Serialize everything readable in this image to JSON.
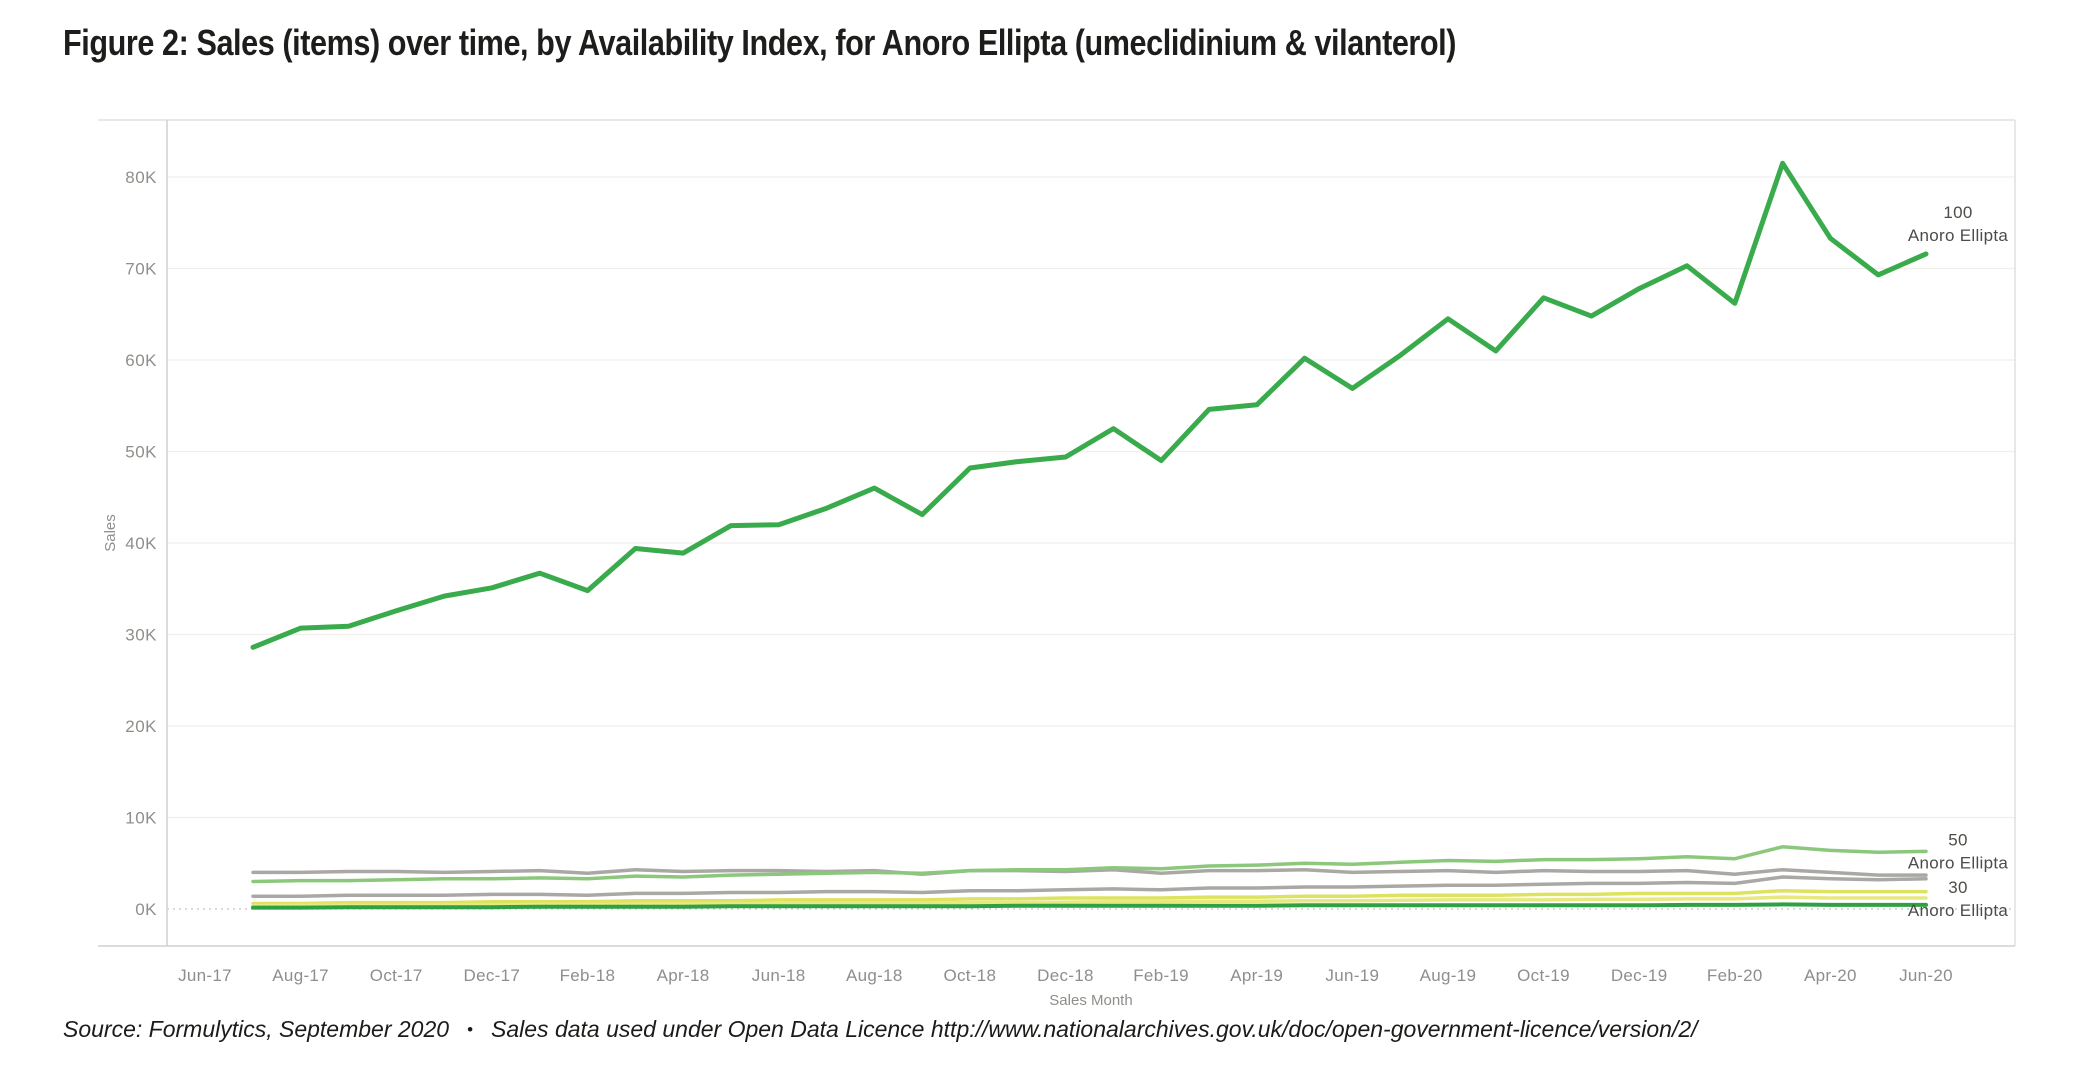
{
  "title": "Figure 2: Sales (items) over time, by Availability Index, for Anoro Ellipta (umeclidinium & vilanterol)",
  "source_line": {
    "part1": "Source: Formulytics, September 2020",
    "bullet": "•",
    "part2": "Sales data used under Open Data Licence http://www.nationalarchives.gov.uk/doc/open-government-licence/version/2/"
  },
  "colors": {
    "background": "#ffffff",
    "title_text": "#1d1d1b",
    "source_text": "#1b1b19",
    "tick_text": "#8f8e8a",
    "axis_title_text": "#8f8e8a",
    "end_label_text": "#4c4c48",
    "grid": "#f1efec",
    "zero_line": "#cfccc7",
    "axis_line": "#d3d1cc",
    "frame": "#e3e1dd",
    "green_100": "#3aab4c",
    "green_50": "#8bc87c",
    "green_30": "#2fa044",
    "gray_series": "#a9a8a4",
    "yellow_series_1": "#dde35e",
    "yellow_series_2": "#e7e980"
  },
  "chart_data": {
    "type": "line",
    "title": "",
    "xlabel": "Sales Month",
    "ylabel": "Sales",
    "grid": "horizontal faint lines every 10K, zero line dotted",
    "legend_position": "labels at right end of lines",
    "ylim": [
      0,
      86
    ],
    "y_tick_labels": [
      "0K",
      "10K",
      "20K",
      "30K",
      "40K",
      "50K",
      "60K",
      "70K",
      "80K"
    ],
    "x_tick_labels": [
      "Jun-17",
      "Aug-17",
      "Oct-17",
      "Dec-17",
      "Feb-18",
      "Apr-18",
      "Jun-18",
      "Aug-18",
      "Oct-18",
      "Dec-18",
      "Feb-19",
      "Apr-19",
      "Jun-19",
      "Aug-19",
      "Oct-19",
      "Dec-19",
      "Feb-20",
      "Apr-20",
      "Jun-20"
    ],
    "x": [
      "Jul-17",
      "Aug-17",
      "Sep-17",
      "Oct-17",
      "Nov-17",
      "Dec-17",
      "Jan-18",
      "Feb-18",
      "Mar-18",
      "Apr-18",
      "May-18",
      "Jun-18",
      "Jul-18",
      "Aug-18",
      "Sep-18",
      "Oct-18",
      "Nov-18",
      "Dec-18",
      "Jan-19",
      "Feb-19",
      "Mar-19",
      "Apr-19",
      "May-19",
      "Jun-19",
      "Jul-19",
      "Aug-19",
      "Sep-19",
      "Oct-19",
      "Nov-19",
      "Dec-19",
      "Jan-20",
      "Feb-20",
      "Mar-20",
      "Apr-20",
      "May-20",
      "Jun-20"
    ],
    "unit": "thousands of items (K)",
    "series": [
      {
        "name": "unlabeled-gray-1",
        "color": "#a9a8a4",
        "stroke_width": 3.5,
        "values": [
          4.0,
          4.0,
          4.1,
          4.1,
          4.0,
          4.1,
          4.2,
          3.9,
          4.3,
          4.1,
          4.2,
          4.2,
          4.1,
          4.2,
          3.8,
          4.2,
          4.2,
          4.1,
          4.3,
          3.9,
          4.2,
          4.2,
          4.3,
          4.0,
          4.1,
          4.2,
          4.0,
          4.2,
          4.1,
          4.1,
          4.2,
          3.8,
          4.3,
          4.0,
          3.7,
          3.7
        ]
      },
      {
        "name": "unlabeled-gray-2",
        "color": "#a9a8a4",
        "stroke_width": 3.5,
        "values": [
          1.4,
          1.4,
          1.5,
          1.5,
          1.5,
          1.6,
          1.6,
          1.5,
          1.7,
          1.7,
          1.8,
          1.8,
          1.9,
          1.9,
          1.8,
          2.0,
          2.0,
          2.1,
          2.2,
          2.1,
          2.3,
          2.3,
          2.4,
          2.4,
          2.5,
          2.6,
          2.6,
          2.7,
          2.8,
          2.8,
          2.9,
          2.8,
          3.5,
          3.3,
          3.2,
          3.3
        ]
      },
      {
        "name": "unlabeled-yellow-1",
        "color": "#dde35e",
        "stroke_width": 3.5,
        "values": [
          0.6,
          0.6,
          0.7,
          0.7,
          0.7,
          0.8,
          0.8,
          0.8,
          0.9,
          0.9,
          0.9,
          1.0,
          1.0,
          1.0,
          1.0,
          1.1,
          1.1,
          1.2,
          1.2,
          1.2,
          1.3,
          1.3,
          1.4,
          1.4,
          1.5,
          1.5,
          1.5,
          1.6,
          1.6,
          1.7,
          1.7,
          1.7,
          2.0,
          1.9,
          1.9,
          1.9
        ]
      },
      {
        "name": "unlabeled-yellow-2",
        "color": "#e7e980",
        "stroke_width": 3.5,
        "values": [
          0.35,
          0.4,
          0.4,
          0.4,
          0.45,
          0.45,
          0.5,
          0.5,
          0.55,
          0.55,
          0.6,
          0.6,
          0.65,
          0.65,
          0.65,
          0.7,
          0.7,
          0.75,
          0.8,
          0.8,
          0.85,
          0.85,
          0.9,
          0.9,
          0.95,
          1.0,
          1.0,
          1.0,
          1.05,
          1.05,
          1.1,
          1.1,
          1.3,
          1.2,
          1.2,
          1.2
        ]
      },
      {
        "name": "Anoro Ellipta — Availability Index 50",
        "color": "#8bc87c",
        "stroke_width": 3.5,
        "end_label": [
          "50",
          "Anoro Ellipta"
        ],
        "values": [
          3.0,
          3.1,
          3.1,
          3.2,
          3.3,
          3.3,
          3.4,
          3.3,
          3.6,
          3.5,
          3.7,
          3.8,
          3.9,
          4.0,
          3.9,
          4.2,
          4.3,
          4.3,
          4.5,
          4.4,
          4.7,
          4.8,
          5.0,
          4.9,
          5.1,
          5.3,
          5.2,
          5.4,
          5.4,
          5.5,
          5.7,
          5.5,
          6.8,
          6.4,
          6.2,
          6.3
        ]
      },
      {
        "name": "Anoro Ellipta — Availability Index 30",
        "color": "#2fa044",
        "stroke_width": 4,
        "end_label": [
          "30",
          "Anoro Ellipta"
        ],
        "values": [
          0.15,
          0.15,
          0.2,
          0.2,
          0.2,
          0.2,
          0.25,
          0.25,
          0.25,
          0.25,
          0.3,
          0.3,
          0.3,
          0.3,
          0.3,
          0.3,
          0.35,
          0.35,
          0.35,
          0.35,
          0.35,
          0.35,
          0.4,
          0.4,
          0.4,
          0.4,
          0.4,
          0.4,
          0.4,
          0.4,
          0.45,
          0.45,
          0.5,
          0.45,
          0.45,
          0.45
        ]
      },
      {
        "name": "Anoro Ellipta — Availability Index 100",
        "color": "#3aab4c",
        "stroke_width": 5,
        "end_label": [
          "100",
          "Anoro Ellipta"
        ],
        "values": [
          28.6,
          30.7,
          30.9,
          32.6,
          34.2,
          35.1,
          36.7,
          34.8,
          39.4,
          38.9,
          41.9,
          42.0,
          43.8,
          46.0,
          43.1,
          48.2,
          48.9,
          49.4,
          52.5,
          49.0,
          54.6,
          55.1,
          60.2,
          56.9,
          60.5,
          64.5,
          61.0,
          66.8,
          64.8,
          67.8,
          70.3,
          66.2,
          81.5,
          73.3,
          69.3,
          71.6
        ]
      }
    ]
  }
}
